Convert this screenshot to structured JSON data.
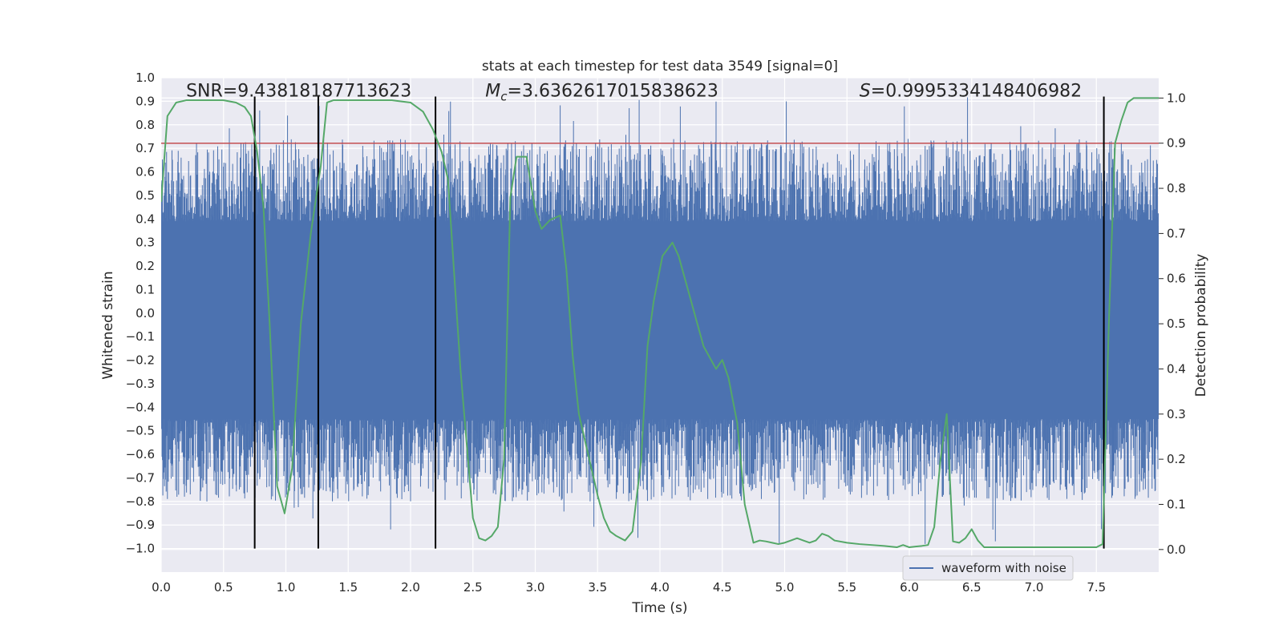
{
  "chart_data": {
    "type": "line",
    "title": "stats at each timestep for test data 3549 [signal=0]",
    "xlabel": "Time (s)",
    "ylabel_left": "Whitened strain",
    "ylabel_right": "Detection probability",
    "xlim": [
      0.0,
      8.0
    ],
    "ylim_left": [
      -1.1,
      1.0
    ],
    "ylim_right": [
      -0.05,
      1.045
    ],
    "x_ticks": [
      0.0,
      0.5,
      1.0,
      1.5,
      2.0,
      2.5,
      3.0,
      3.5,
      4.0,
      4.5,
      5.0,
      5.5,
      6.0,
      6.5,
      7.0,
      7.5
    ],
    "x_tick_labels": [
      "0.0",
      "0.5",
      "1.0",
      "1.5",
      "2.0",
      "2.5",
      "3.0",
      "3.5",
      "4.0",
      "4.5",
      "5.0",
      "5.5",
      "6.0",
      "6.5",
      "7.0",
      "7.5"
    ],
    "y_left_ticks": [
      1.0,
      0.9,
      0.8,
      0.7,
      0.6,
      0.5,
      0.4,
      0.3,
      0.2,
      0.1,
      0.0,
      -0.1,
      -0.2,
      -0.3,
      -0.4,
      -0.5,
      -0.6,
      -0.7,
      -0.8,
      -0.9,
      -1.0
    ],
    "y_left_tick_labels": [
      "1.0",
      "0.9",
      "0.8",
      "0.7",
      "0.6",
      "0.5",
      "0.4",
      "0.3",
      "0.2",
      "0.1",
      "0.0",
      "−0.1",
      "−0.2",
      "−0.3",
      "−0.4",
      "−0.5",
      "−0.6",
      "−0.7",
      "−0.8",
      "−0.9",
      "−1.0"
    ],
    "y_right_ticks": [
      1.0,
      0.9,
      0.8,
      0.7,
      0.6,
      0.5,
      0.4,
      0.3,
      0.2,
      0.1,
      0.0
    ],
    "y_right_tick_labels": [
      "1.0",
      "0.9",
      "0.8",
      "0.7",
      "0.6",
      "0.5",
      "0.4",
      "0.3",
      "0.2",
      "0.1",
      "0.0"
    ],
    "threshold": {
      "value": 0.9,
      "axis": "right",
      "color": "#c44e52"
    },
    "vertical_markers": {
      "x": [
        0.75,
        1.26,
        2.2,
        7.56
      ],
      "ymin": -1.0,
      "ymax": 0.92,
      "color": "#000000"
    },
    "annotations": {
      "snr": {
        "x": 0.2,
        "y": 0.92,
        "text": "SNR=9.43818187713623"
      },
      "mc": {
        "x": 2.6,
        "y": 0.92,
        "prefix": "M",
        "subscript": "c",
        "text": "=3.6362617015838623"
      },
      "s": {
        "x": 5.6,
        "y": 0.92,
        "prefix": "S",
        "text": "=0.9995334148406982"
      }
    },
    "series": [
      {
        "name": "waveform with noise",
        "axis": "left",
        "color": "#4c72b0",
        "render": "dense-noise-band",
        "core_envelope": [
          -0.43,
          0.37
        ],
        "peak_envelope": [
          -1.0,
          0.92
        ],
        "x_range": [
          0.0,
          8.0
        ]
      },
      {
        "name": "detection probability",
        "axis": "right",
        "color": "#55a868",
        "x": [
          0.0,
          0.05,
          0.12,
          0.2,
          0.3,
          0.4,
          0.5,
          0.6,
          0.67,
          0.72,
          0.77,
          0.82,
          0.87,
          0.93,
          0.99,
          1.05,
          1.12,
          1.2,
          1.28,
          1.33,
          1.38,
          1.45,
          1.55,
          1.7,
          1.85,
          2.0,
          2.1,
          2.18,
          2.25,
          2.3,
          2.4,
          2.5,
          2.55,
          2.6,
          2.65,
          2.7,
          2.75,
          2.8,
          2.85,
          2.93,
          3.0,
          3.05,
          3.12,
          3.2,
          3.25,
          3.3,
          3.35,
          3.4,
          3.5,
          3.55,
          3.6,
          3.65,
          3.72,
          3.78,
          3.85,
          3.9,
          3.95,
          4.02,
          4.1,
          4.15,
          4.2,
          4.25,
          4.3,
          4.35,
          4.45,
          4.5,
          4.55,
          4.62,
          4.68,
          4.75,
          4.8,
          4.85,
          4.9,
          4.95,
          5.0,
          5.05,
          5.1,
          5.15,
          5.2,
          5.25,
          5.3,
          5.35,
          5.4,
          5.5,
          5.6,
          5.7,
          5.8,
          5.9,
          5.95,
          6.0,
          6.1,
          6.15,
          6.2,
          6.25,
          6.3,
          6.35,
          6.4,
          6.45,
          6.5,
          6.55,
          6.6,
          6.7,
          6.8,
          6.9,
          7.0,
          7.1,
          7.2,
          7.3,
          7.4,
          7.45,
          7.5,
          7.55,
          7.6,
          7.65,
          7.7,
          7.75,
          7.8,
          7.9,
          8.0
        ],
        "y": [
          0.77,
          0.96,
          0.99,
          0.995,
          0.995,
          0.995,
          0.995,
          0.99,
          0.98,
          0.96,
          0.88,
          0.76,
          0.5,
          0.14,
          0.08,
          0.18,
          0.5,
          0.7,
          0.85,
          0.99,
          0.995,
          0.995,
          0.995,
          0.995,
          0.995,
          0.99,
          0.97,
          0.93,
          0.88,
          0.82,
          0.4,
          0.07,
          0.025,
          0.02,
          0.03,
          0.05,
          0.2,
          0.78,
          0.87,
          0.87,
          0.75,
          0.71,
          0.73,
          0.74,
          0.62,
          0.43,
          0.3,
          0.24,
          0.12,
          0.07,
          0.04,
          0.03,
          0.02,
          0.04,
          0.2,
          0.45,
          0.55,
          0.65,
          0.68,
          0.65,
          0.6,
          0.55,
          0.5,
          0.45,
          0.4,
          0.42,
          0.38,
          0.28,
          0.1,
          0.015,
          0.02,
          0.018,
          0.015,
          0.012,
          0.015,
          0.02,
          0.025,
          0.02,
          0.015,
          0.02,
          0.035,
          0.03,
          0.02,
          0.015,
          0.012,
          0.01,
          0.008,
          0.005,
          0.01,
          0.005,
          0.008,
          0.01,
          0.05,
          0.2,
          0.3,
          0.018,
          0.015,
          0.025,
          0.045,
          0.02,
          0.005,
          0.005,
          0.005,
          0.005,
          0.005,
          0.005,
          0.005,
          0.005,
          0.005,
          0.005,
          0.005,
          0.012,
          0.5,
          0.9,
          0.95,
          0.99,
          1.0,
          1.0,
          1.0
        ]
      }
    ],
    "legend": {
      "location": "lower-right",
      "entries": [
        "waveform with noise"
      ]
    },
    "grid": true,
    "colors": {
      "axes_bg": "#eaeaf2",
      "grid": "#ffffff",
      "text": "#262626"
    }
  }
}
